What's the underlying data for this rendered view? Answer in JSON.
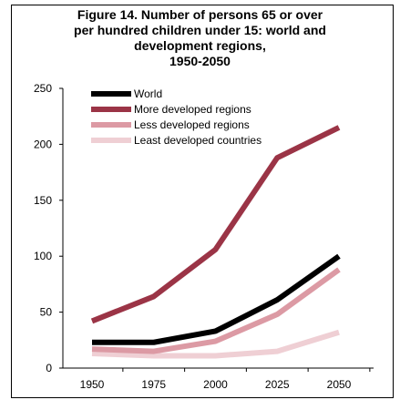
{
  "colors": {
    "world": "#000000",
    "more_developed": "#9b3446",
    "less_developed": "#dc9aa4",
    "least_developed": "#efcfd4",
    "axis": "#000000",
    "frame": "#000000"
  },
  "chart_data": {
    "type": "line",
    "title_lines": [
      "Figure 14.  Number of persons 65 or over",
      "per hundred children under 15: world and",
      "development regions,",
      "1950-2050"
    ],
    "xlabel": "",
    "ylabel": "",
    "x": [
      "1950",
      "1975",
      "2000",
      "2025",
      "2050"
    ],
    "ylim": [
      0,
      250
    ],
    "yticks": [
      0,
      50,
      100,
      150,
      200,
      250
    ],
    "grid": false,
    "legend_position": "top-left",
    "series": [
      {
        "name": "World",
        "color": "#000000",
        "values": [
          23,
          23,
          33,
          61,
          100
        ]
      },
      {
        "name": "More developed regions",
        "color": "#9b3446",
        "values": [
          42,
          64,
          106,
          188,
          215
        ]
      },
      {
        "name": "Less developed regions",
        "color": "#dc9aa4",
        "values": [
          17,
          15,
          24,
          48,
          88
        ]
      },
      {
        "name": "Least developed countries",
        "color": "#efcfd4",
        "values": [
          13,
          11,
          11,
          15,
          32
        ]
      }
    ]
  }
}
